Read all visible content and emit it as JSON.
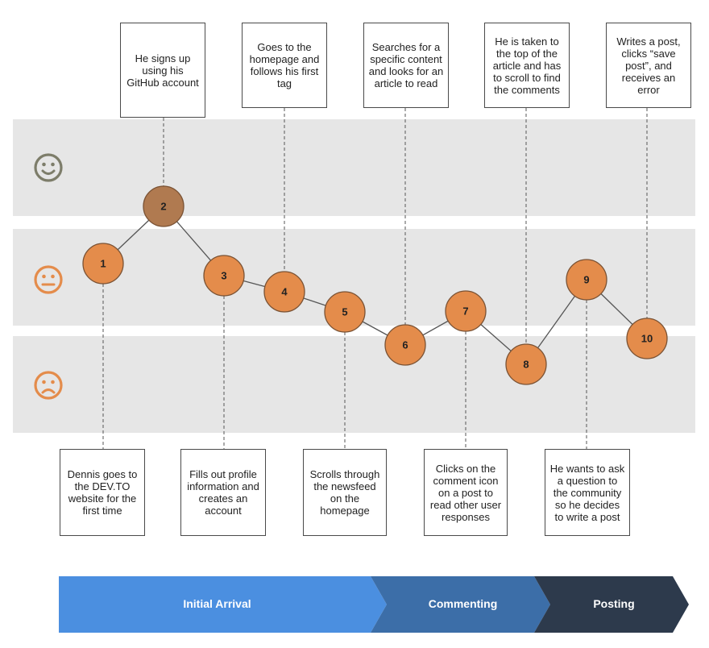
{
  "emotion_bands": [
    {
      "name": "happy",
      "icon": "smiley-face-icon"
    },
    {
      "name": "neutral",
      "icon": "neutral-face-icon"
    },
    {
      "name": "sad",
      "icon": "sad-face-icon"
    }
  ],
  "colors": {
    "band": "#e6e6e6",
    "node": "#e48c4b",
    "node_highlight": "#b07a50",
    "node_border": "#7a5234",
    "happy_face": "#7d7d6a",
    "face": "#e48c4b",
    "stage_1": "#4b8fe0",
    "stage_2": "#3c6ea8",
    "stage_3": "#2d3a4c"
  },
  "steps": [
    {
      "num": "1",
      "emotion": "neutral"
    },
    {
      "num": "2",
      "emotion": "happy"
    },
    {
      "num": "3",
      "emotion": "neutral"
    },
    {
      "num": "4",
      "emotion": "neutral"
    },
    {
      "num": "5",
      "emotion": "neutral"
    },
    {
      "num": "6",
      "emotion": "sad"
    },
    {
      "num": "7",
      "emotion": "neutral"
    },
    {
      "num": "8",
      "emotion": "sad"
    },
    {
      "num": "9",
      "emotion": "neutral"
    },
    {
      "num": "10",
      "emotion": "sad"
    }
  ],
  "top_notes": [
    {
      "step": "2",
      "text": "He signs up using his GitHub account"
    },
    {
      "step": "4",
      "text": "Goes to the homepage and follows his first tag"
    },
    {
      "step": "6",
      "text": "Searches for a specific content and looks for an article to read"
    },
    {
      "step": "8",
      "text": "He is taken to the top of the article and has to scroll to find the comments"
    },
    {
      "step": "10",
      "text": "Writes a post, clicks “save post”, and receives an error"
    }
  ],
  "bottom_notes": [
    {
      "step": "1",
      "text": "Dennis goes to the DEV.TO website for the first time"
    },
    {
      "step": "3",
      "text": "Fills out profile information and creates an account"
    },
    {
      "step": "5",
      "text": "Scrolls through the newsfeed on the homepage"
    },
    {
      "step": "7",
      "text": "Clicks on the comment icon on a post to read other user responses"
    },
    {
      "step": "9",
      "text": "He wants to ask a question to the community so he decides to write a post"
    }
  ],
  "stages": [
    {
      "label": "Initial Arrival"
    },
    {
      "label": "Commenting"
    },
    {
      "label": "Posting"
    }
  ]
}
